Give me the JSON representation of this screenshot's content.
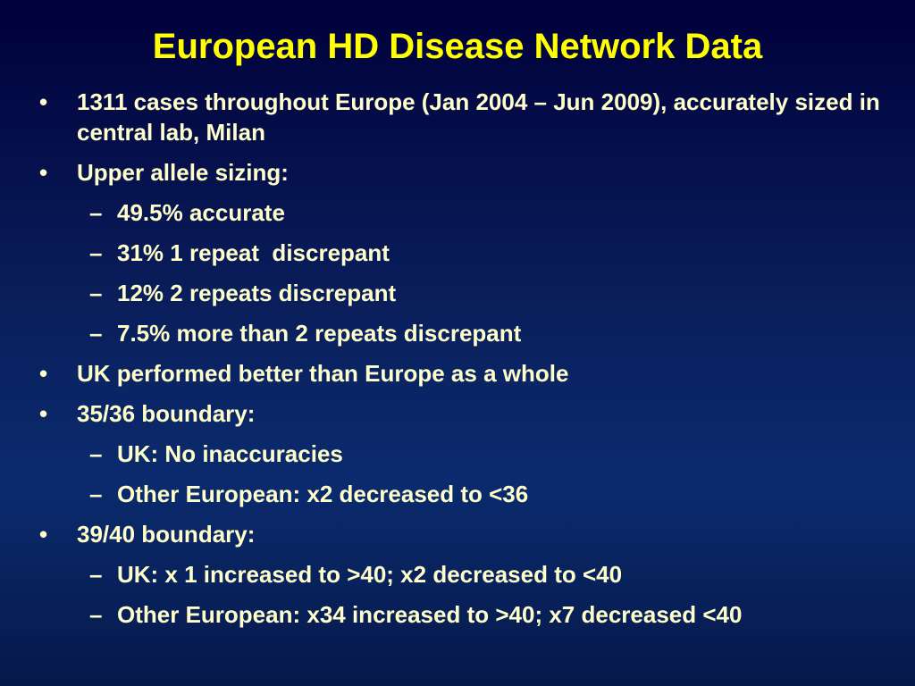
{
  "slide": {
    "title": "European HD Disease Network Data",
    "bullet_symbol": "•",
    "dash_symbol": "–",
    "colors": {
      "title": "#ffff00",
      "body_text": "#ffffcc",
      "background_top": "#00003a",
      "background_mid": "#0b2b6e"
    },
    "items": [
      {
        "level": 1,
        "text": "1311 cases throughout Europe (Jan 2004 – Jun 2009), accurately sized in central lab, Milan"
      },
      {
        "level": 1,
        "text": "Upper allele sizing:"
      },
      {
        "level": 2,
        "text": "49.5% accurate"
      },
      {
        "level": 2,
        "text": "31% 1 repeat  discrepant"
      },
      {
        "level": 2,
        "text": "12% 2 repeats discrepant"
      },
      {
        "level": 2,
        "text": "7.5% more than 2 repeats discrepant"
      },
      {
        "level": 1,
        "text": "UK performed better than Europe as a whole"
      },
      {
        "level": 1,
        "text": "35/36 boundary:"
      },
      {
        "level": 2,
        "text": "UK: No inaccuracies"
      },
      {
        "level": 2,
        "text": "Other European: x2 decreased to <36"
      },
      {
        "level": 1,
        "text": "39/40 boundary:"
      },
      {
        "level": 2,
        "text": "UK: x 1 increased to >40; x2 decreased to <40"
      },
      {
        "level": 2,
        "text": "Other European: x34 increased to >40; x7 decreased <40"
      }
    ]
  }
}
